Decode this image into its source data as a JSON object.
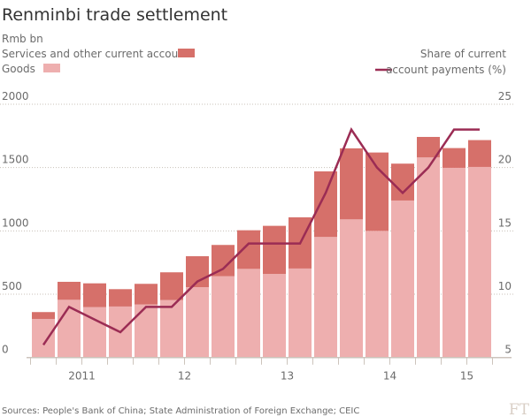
{
  "chart_data": {
    "type": "bar",
    "stacked": true,
    "title": "Renminbi trade settlement",
    "left_axis_unit": "Rmb bn",
    "right_axis_label_line1": "Share of current",
    "right_axis_label_line2": "account payments (%)",
    "ylim": [
      0,
      2000
    ],
    "yticks": [
      0,
      500,
      1000,
      1500,
      2000
    ],
    "y2lim": [
      5,
      25
    ],
    "y2ticks": [
      5,
      10,
      15,
      20,
      25
    ],
    "grid": true,
    "legend_placement": "top",
    "xticks": [
      {
        "label": "2011",
        "at": 1.5
      },
      {
        "label": "12",
        "at": 5.5
      },
      {
        "label": "13",
        "at": 9.5
      },
      {
        "label": "14",
        "at": 13.5
      },
      {
        "label": "15",
        "at": 16.5
      }
    ],
    "series": [
      {
        "name": "Goods",
        "kind": "bar",
        "color": "#eeafaf",
        "values": [
          305,
          456,
          398,
          403,
          419,
          454,
          556,
          642,
          700,
          660,
          703,
          952,
          1091,
          1000,
          1240,
          1580,
          1498,
          1505
        ]
      },
      {
        "name": "Services and other current account",
        "kind": "bar",
        "color": "#d6706a",
        "values": [
          54,
          142,
          188,
          137,
          163,
          219,
          244,
          247,
          305,
          380,
          404,
          518,
          561,
          619,
          291,
          162,
          156,
          212
        ]
      },
      {
        "name": "Share of current account payments (%)",
        "kind": "line",
        "axis": "right",
        "color": "#9b2c54",
        "values": [
          6,
          9,
          8,
          7,
          9,
          9,
          11,
          12,
          14,
          14,
          14,
          18,
          23,
          20,
          18,
          20,
          23,
          23
        ]
      }
    ]
  },
  "footer": {
    "source": "Sources: People's Bank of China; State Administration of Foreign Exchange;  CEIC",
    "logo": "FT"
  }
}
